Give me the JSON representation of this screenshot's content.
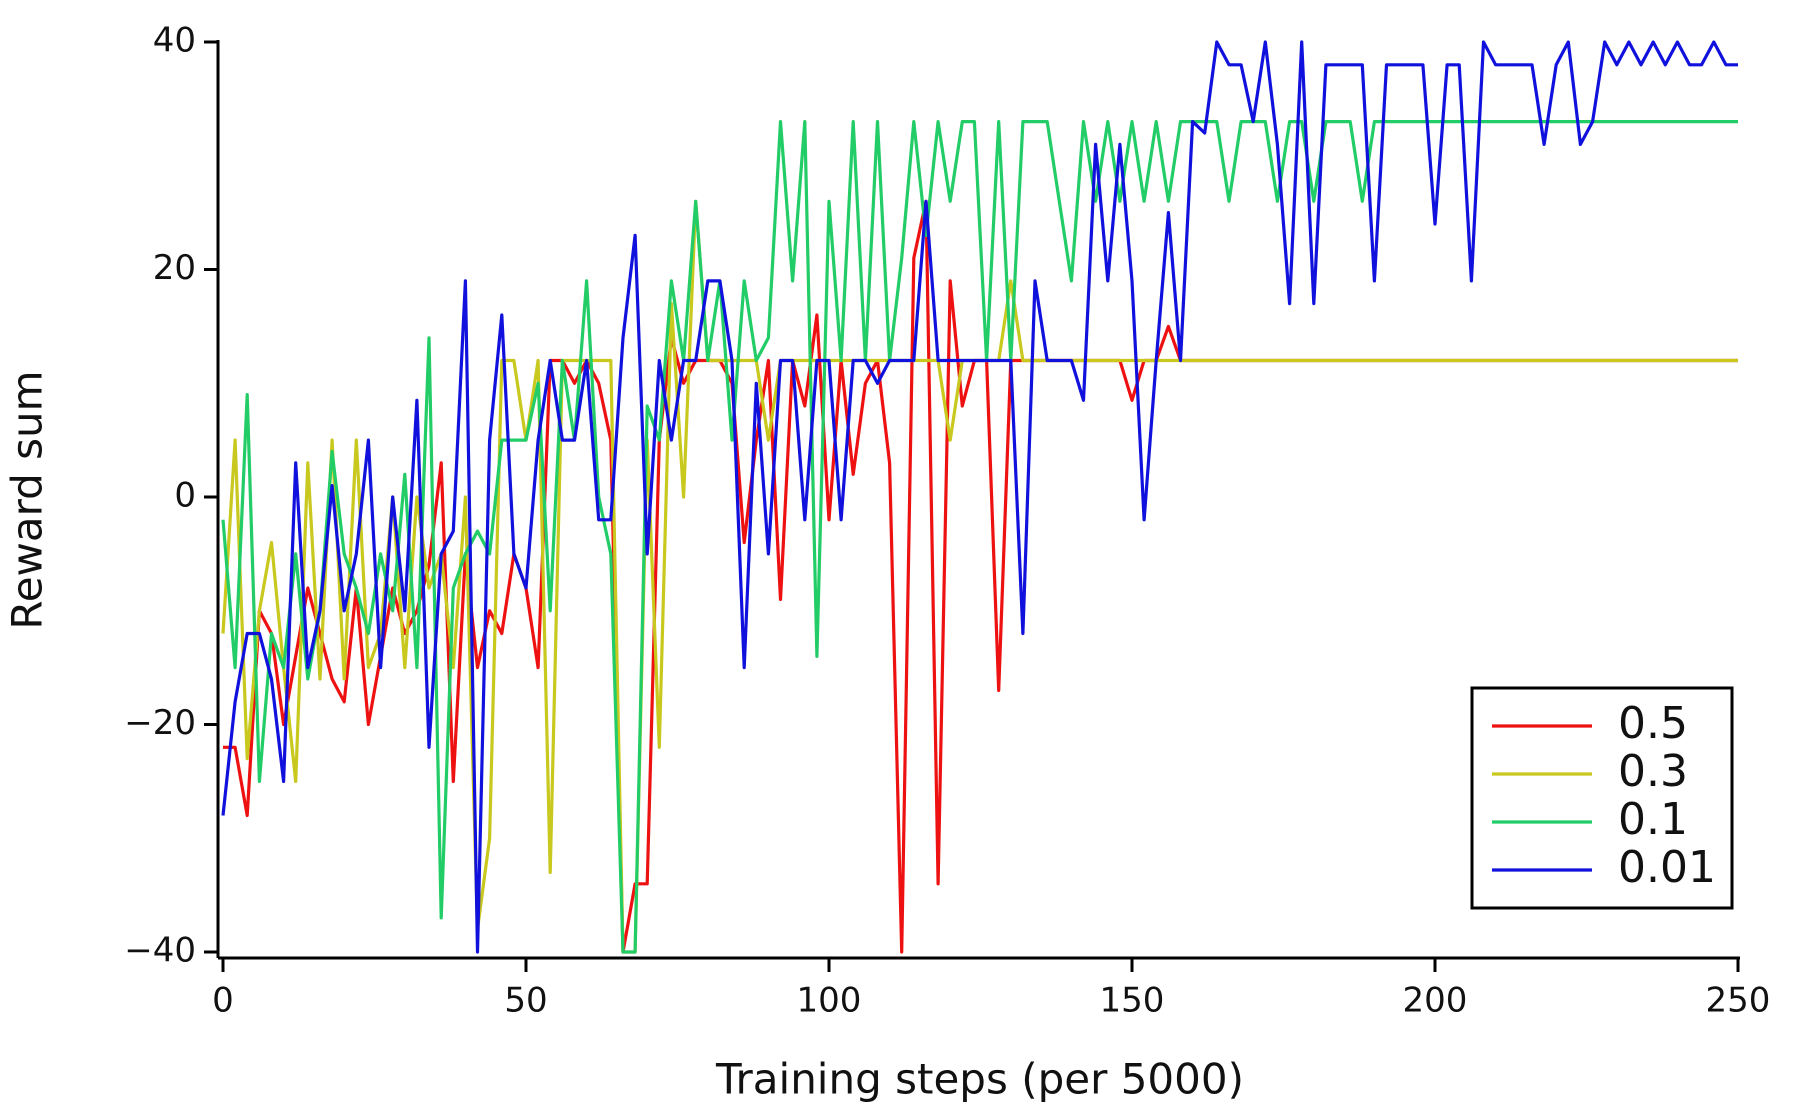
{
  "chart_data": {
    "type": "line",
    "xlabel": "Training steps (per 5000)",
    "ylabel": "Reward sum",
    "x": [
      0,
      2,
      4,
      6,
      8,
      10,
      12,
      14,
      16,
      18,
      20,
      22,
      24,
      26,
      28,
      30,
      32,
      34,
      36,
      38,
      40,
      42,
      44,
      46,
      48,
      50,
      52,
      54,
      56,
      58,
      60,
      62,
      64,
      66,
      68,
      70,
      72,
      74,
      76,
      78,
      80,
      82,
      84,
      86,
      88,
      90,
      92,
      94,
      96,
      98,
      100,
      102,
      104,
      106,
      108,
      110,
      112,
      114,
      116,
      118,
      120,
      122,
      124,
      126,
      128,
      130,
      132,
      134,
      136,
      138,
      140,
      142,
      144,
      146,
      148,
      150,
      152,
      154,
      156,
      158,
      160,
      162,
      164,
      166,
      168,
      170,
      172,
      174,
      176,
      178,
      180,
      182,
      184,
      186,
      188,
      190,
      192,
      194,
      196,
      198,
      200,
      202,
      204,
      206,
      208,
      210,
      212,
      214,
      216,
      218,
      220,
      222,
      224,
      226,
      228,
      230,
      232,
      234,
      236,
      238,
      240,
      242,
      244,
      246,
      248,
      250
    ],
    "series": [
      {
        "name": "0.5",
        "color": "#ee1111",
        "values": [
          -22,
          -22,
          -28,
          -10,
          -12,
          -20,
          -14,
          -8,
          -12,
          -16,
          -18,
          -8,
          -20,
          -14,
          -8,
          -12,
          -10,
          -6,
          3,
          -25,
          -5,
          -15,
          -10,
          -12,
          -5,
          -8,
          -15,
          12,
          12,
          10,
          12,
          10,
          5,
          -40,
          -34,
          -34,
          5,
          14,
          10,
          12,
          12,
          12,
          10,
          -4,
          5,
          12,
          -9,
          12,
          8,
          16,
          -2,
          12,
          2,
          10,
          12,
          3,
          -40,
          21,
          26,
          -34,
          19,
          8,
          12,
          12,
          -17,
          12,
          12,
          12,
          12,
          12,
          12,
          12,
          12,
          12,
          12,
          8.5,
          12,
          12,
          15,
          12,
          12,
          12,
          12,
          12,
          12,
          12,
          12,
          12,
          12,
          12,
          12,
          12,
          12,
          12,
          12,
          12,
          12,
          12,
          12,
          12,
          12,
          12,
          12,
          12,
          12,
          12,
          12,
          12,
          12,
          12,
          12,
          12,
          12,
          12,
          12,
          12,
          12,
          12,
          12,
          12,
          12,
          12,
          12,
          12,
          12,
          12
        ]
      },
      {
        "name": "0.3",
        "color": "#c8c81e",
        "values": [
          -12,
          5,
          -23,
          -10,
          -4,
          -15,
          -25,
          3,
          -16,
          5,
          -16,
          5,
          -15,
          -12,
          0,
          -15,
          0,
          -8,
          -5,
          -15,
          0,
          -38,
          -30,
          12,
          12,
          5,
          12,
          -33,
          12,
          12,
          12,
          12,
          12,
          -40,
          -40,
          5,
          -22,
          17,
          0,
          26,
          12,
          12,
          12,
          12,
          12,
          5,
          12,
          12,
          12,
          12,
          12,
          12,
          12,
          12,
          12,
          12,
          12,
          12,
          12,
          12,
          5,
          12,
          12,
          12,
          12,
          19,
          12,
          12,
          12,
          12,
          12,
          12,
          12,
          12,
          12,
          12,
          12,
          12,
          12,
          12,
          12,
          12,
          12,
          12,
          12,
          12,
          12,
          12,
          12,
          12,
          12,
          12,
          12,
          12,
          12,
          12,
          12,
          12,
          12,
          12,
          12,
          12,
          12,
          12,
          12,
          12,
          12,
          12,
          12,
          12,
          12,
          12,
          12,
          12,
          12,
          12,
          12,
          12,
          12,
          12,
          12,
          12,
          12,
          12,
          12,
          12
        ]
      },
      {
        "name": "0.1",
        "color": "#22cc66",
        "values": [
          -2,
          -15,
          9,
          -25,
          -12,
          -15,
          -5,
          -16,
          -10,
          4,
          -5,
          -8,
          -12,
          -5,
          -10,
          2,
          -15,
          14,
          -37,
          -8,
          -5,
          -3,
          -5,
          5,
          5,
          5,
          10,
          -10,
          12,
          5,
          19,
          0,
          -5,
          -40,
          -40,
          8,
          5,
          19,
          12,
          26,
          12,
          19,
          5,
          19,
          12,
          14,
          33,
          19,
          33,
          -14,
          26,
          12,
          33,
          12,
          33,
          12,
          21,
          33,
          23,
          33,
          26,
          33,
          33,
          12,
          33,
          12,
          33,
          33,
          33,
          26,
          19,
          33,
          26,
          33,
          26,
          33,
          26,
          33,
          26,
          33,
          33,
          33,
          33,
          26,
          33,
          33,
          33,
          26,
          33,
          33,
          26,
          33,
          33,
          33,
          26,
          33,
          33,
          33,
          33,
          33,
          33,
          33,
          33,
          33,
          33,
          33,
          33,
          33,
          33,
          33,
          33,
          33,
          33,
          33,
          33,
          33,
          33,
          33,
          33,
          33,
          33,
          33,
          33,
          33,
          33,
          33
        ]
      },
      {
        "name": "0.01",
        "color": "#1111dd",
        "values": [
          -28,
          -18,
          -12,
          -12,
          -16,
          -25,
          3,
          -15,
          -10,
          1,
          -10,
          -5,
          5,
          -15,
          0,
          -10,
          8.5,
          -22,
          -5,
          -3,
          19,
          -40,
          5,
          16,
          -5,
          -8,
          5,
          12,
          5,
          5,
          12,
          -2,
          -2,
          14,
          23,
          -5,
          12,
          5,
          12,
          12,
          19,
          19,
          12,
          -15,
          10,
          -5,
          12,
          12,
          -2,
          12,
          12,
          -2,
          12,
          12,
          10,
          12,
          12,
          12,
          26,
          12,
          12,
          12,
          12,
          12,
          12,
          12,
          -12,
          19,
          12,
          12,
          12,
          8.5,
          31,
          19,
          31,
          19,
          -2,
          12,
          25,
          12,
          33,
          32,
          40,
          38,
          38,
          33,
          40,
          31,
          17,
          40,
          17,
          38,
          38,
          38,
          38,
          19,
          38,
          38,
          38,
          38,
          24,
          38,
          38,
          19,
          40,
          38,
          38,
          38,
          38,
          31,
          38,
          40,
          31,
          33,
          40,
          38,
          40,
          38,
          40,
          38,
          40,
          38,
          38,
          40,
          38,
          38
        ]
      }
    ],
    "xlim": [
      0,
      250
    ],
    "ylim": [
      -40,
      40
    ],
    "xticks": [
      0,
      50,
      100,
      150,
      200,
      250
    ],
    "yticks": [
      {
        "value": -40,
        "label": "−40"
      },
      {
        "value": -20,
        "label": "−20"
      },
      0,
      20,
      40
    ],
    "legend": "lower right"
  }
}
